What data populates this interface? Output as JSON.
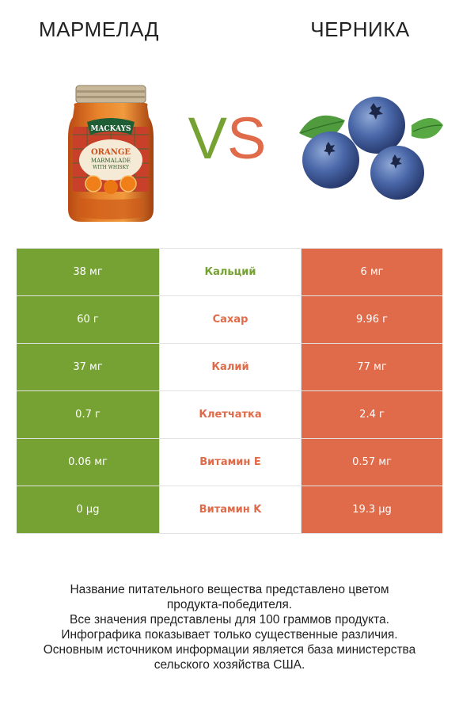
{
  "header": {
    "left_title": "МАРМЕЛАД",
    "right_title": "ЧЕРНИКА",
    "vs_v": "V",
    "vs_s": "S"
  },
  "jar_label": {
    "brand": "MACKAYS",
    "line1": "ORANGE",
    "line2": "MARMALADE",
    "line3": "WITH WHISKY"
  },
  "colors": {
    "left_winner": "#76a233",
    "right_winner": "#e06b4a"
  },
  "rows": [
    {
      "left": "38 мг",
      "label": "Кальций",
      "right": "6 мг",
      "winner": "left"
    },
    {
      "left": "60 г",
      "label": "Сахар",
      "right": "9.96 г",
      "winner": "right"
    },
    {
      "left": "37 мг",
      "label": "Калий",
      "right": "77 мг",
      "winner": "right"
    },
    {
      "left": "0.7 г",
      "label": "Клетчатка",
      "right": "2.4 г",
      "winner": "right"
    },
    {
      "left": "0.06 мг",
      "label": "Витамин E",
      "right": "0.57 мг",
      "winner": "right"
    },
    {
      "left": "0 µg",
      "label": "Витамин K",
      "right": "19.3 µg",
      "winner": "right"
    }
  ],
  "footer": {
    "line1": "Название питательного вещества представлено цветом",
    "line2": "продукта-победителя.",
    "line3": "Все значения представлены для 100 граммов продукта.",
    "line4": "Инфографика показывает только существенные различия.",
    "line5": "Основным источником информации является база министерства",
    "line6": "сельского хозяйства США."
  }
}
